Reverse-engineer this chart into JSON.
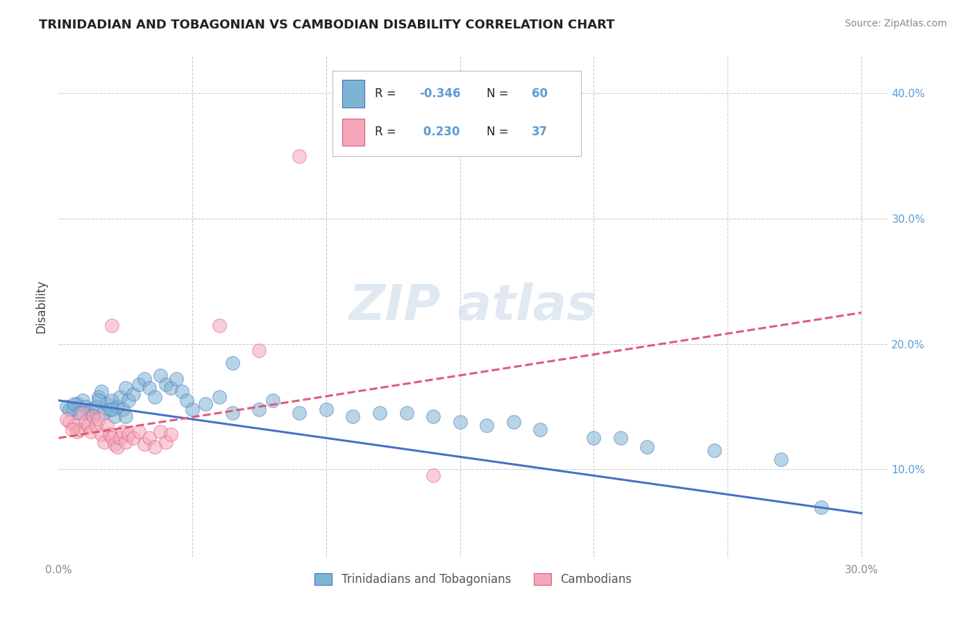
{
  "title": "TRINIDADIAN AND TOBAGONIAN VS CAMBODIAN DISABILITY CORRELATION CHART",
  "source": "Source: ZipAtlas.com",
  "ylabel": "Disability",
  "xlim": [
    0.0,
    0.31
  ],
  "ylim": [
    0.03,
    0.43
  ],
  "blue_color": "#7fb3d3",
  "pink_color": "#f4a7b9",
  "blue_line_color": "#4472c4",
  "pink_line_color": "#e05a7a",
  "blue_R": "-0.346",
  "blue_N": "60",
  "pink_R": "0.230",
  "pink_N": "37",
  "blue_line_x": [
    0.0,
    0.3
  ],
  "blue_line_y": [
    0.155,
    0.065
  ],
  "pink_line_x": [
    0.0,
    0.3
  ],
  "pink_line_y": [
    0.125,
    0.225
  ],
  "blue_scatter": [
    [
      0.005,
      0.148
    ],
    [
      0.007,
      0.152
    ],
    [
      0.009,
      0.155
    ],
    [
      0.01,
      0.15
    ],
    [
      0.011,
      0.145
    ],
    [
      0.012,
      0.148
    ],
    [
      0.013,
      0.143
    ],
    [
      0.014,
      0.15
    ],
    [
      0.015,
      0.158
    ],
    [
      0.016,
      0.162
    ],
    [
      0.017,
      0.145
    ],
    [
      0.018,
      0.152
    ],
    [
      0.019,
      0.148
    ],
    [
      0.02,
      0.155
    ],
    [
      0.021,
      0.142
    ],
    [
      0.022,
      0.15
    ],
    [
      0.023,
      0.158
    ],
    [
      0.024,
      0.148
    ],
    [
      0.025,
      0.165
    ],
    [
      0.026,
      0.155
    ],
    [
      0.028,
      0.16
    ],
    [
      0.03,
      0.168
    ],
    [
      0.032,
      0.172
    ],
    [
      0.034,
      0.165
    ],
    [
      0.036,
      0.158
    ],
    [
      0.038,
      0.175
    ],
    [
      0.04,
      0.168
    ],
    [
      0.042,
      0.165
    ],
    [
      0.044,
      0.172
    ],
    [
      0.046,
      0.162
    ],
    [
      0.048,
      0.155
    ],
    [
      0.05,
      0.148
    ],
    [
      0.055,
      0.152
    ],
    [
      0.06,
      0.158
    ],
    [
      0.065,
      0.145
    ],
    [
      0.075,
      0.148
    ],
    [
      0.08,
      0.155
    ],
    [
      0.09,
      0.145
    ],
    [
      0.1,
      0.148
    ],
    [
      0.11,
      0.142
    ],
    [
      0.12,
      0.145
    ],
    [
      0.13,
      0.145
    ],
    [
      0.14,
      0.142
    ],
    [
      0.15,
      0.138
    ],
    [
      0.16,
      0.135
    ],
    [
      0.17,
      0.138
    ],
    [
      0.18,
      0.132
    ],
    [
      0.003,
      0.15
    ],
    [
      0.004,
      0.148
    ],
    [
      0.006,
      0.152
    ],
    [
      0.008,
      0.145
    ],
    [
      0.015,
      0.155
    ],
    [
      0.02,
      0.148
    ],
    [
      0.025,
      0.142
    ],
    [
      0.2,
      0.125
    ],
    [
      0.21,
      0.125
    ],
    [
      0.22,
      0.118
    ],
    [
      0.245,
      0.115
    ],
    [
      0.27,
      0.108
    ],
    [
      0.285,
      0.07
    ],
    [
      0.065,
      0.185
    ]
  ],
  "pink_scatter": [
    [
      0.004,
      0.138
    ],
    [
      0.006,
      0.135
    ],
    [
      0.007,
      0.13
    ],
    [
      0.008,
      0.132
    ],
    [
      0.009,
      0.145
    ],
    [
      0.01,
      0.138
    ],
    [
      0.011,
      0.135
    ],
    [
      0.012,
      0.13
    ],
    [
      0.013,
      0.142
    ],
    [
      0.014,
      0.135
    ],
    [
      0.015,
      0.14
    ],
    [
      0.016,
      0.128
    ],
    [
      0.017,
      0.122
    ],
    [
      0.018,
      0.135
    ],
    [
      0.019,
      0.128
    ],
    [
      0.02,
      0.125
    ],
    [
      0.021,
      0.12
    ],
    [
      0.022,
      0.118
    ],
    [
      0.023,
      0.125
    ],
    [
      0.024,
      0.13
    ],
    [
      0.025,
      0.122
    ],
    [
      0.026,
      0.128
    ],
    [
      0.028,
      0.125
    ],
    [
      0.03,
      0.13
    ],
    [
      0.032,
      0.12
    ],
    [
      0.034,
      0.125
    ],
    [
      0.036,
      0.118
    ],
    [
      0.038,
      0.13
    ],
    [
      0.04,
      0.122
    ],
    [
      0.042,
      0.128
    ],
    [
      0.003,
      0.14
    ],
    [
      0.005,
      0.132
    ],
    [
      0.02,
      0.215
    ],
    [
      0.06,
      0.215
    ],
    [
      0.075,
      0.195
    ],
    [
      0.14,
      0.095
    ],
    [
      0.09,
      0.35
    ]
  ],
  "grid_color": "#cccccc",
  "background_color": "#ffffff",
  "legend_labels": [
    "Trinidadians and Tobagonians",
    "Cambodians"
  ],
  "right_tick_color": "#5b9bd5",
  "axis_label_color": "#444444",
  "tick_label_color": "#888888"
}
